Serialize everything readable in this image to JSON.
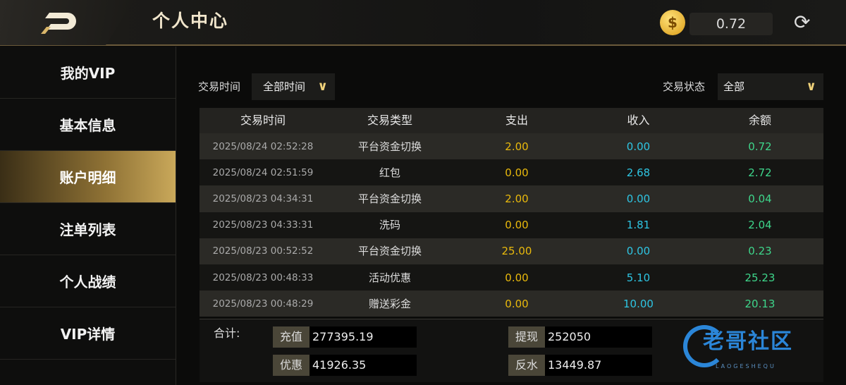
{
  "header": {
    "title": "个人中心",
    "balance": "0.72",
    "coin_icon": "$"
  },
  "sidebar": {
    "items": [
      {
        "label": "我的VIP"
      },
      {
        "label": "基本信息"
      },
      {
        "label": "账户明细",
        "active": true
      },
      {
        "label": "注单列表"
      },
      {
        "label": "个人战绩"
      },
      {
        "label": "VIP详情"
      }
    ]
  },
  "filters": {
    "time_label": "交易时间",
    "time_value": "全部时间",
    "status_label": "交易状态",
    "status_value": "全部"
  },
  "table": {
    "columns": [
      "交易时间",
      "交易类型",
      "支出",
      "收入",
      "余额"
    ],
    "rows": [
      [
        "2025/08/24 02:52:28",
        "平台资金切换",
        "2.00",
        "0.00",
        "0.72"
      ],
      [
        "2025/08/24 02:51:59",
        "红包",
        "0.00",
        "2.68",
        "2.72"
      ],
      [
        "2025/08/23 04:34:31",
        "平台资金切换",
        "2.00",
        "0.00",
        "0.04"
      ],
      [
        "2025/08/23 04:33:31",
        "洗码",
        "0.00",
        "1.81",
        "2.04"
      ],
      [
        "2025/08/23 00:52:52",
        "平台资金切换",
        "25.00",
        "0.00",
        "0.23"
      ],
      [
        "2025/08/23 00:48:33",
        "活动优惠",
        "0.00",
        "5.10",
        "25.23"
      ],
      [
        "2025/08/23 00:48:29",
        "赠送彩金",
        "0.00",
        "10.00",
        "20.13"
      ]
    ]
  },
  "summary": {
    "label": "合计:",
    "recharge_label": "充值",
    "recharge": "277395.19",
    "withdraw_label": "提现",
    "withdraw": "252050",
    "bonus_label": "优惠",
    "bonus": "41926.35",
    "rebate_label": "反水",
    "rebate": "13449.87"
  },
  "watermark": {
    "text": "老哥社区",
    "sub": "LAOGESHEQU"
  },
  "colors": {
    "expense": "#e9b90c",
    "income": "#2ec5e3",
    "balance": "#3ed68b",
    "active": "#c9a85a"
  }
}
